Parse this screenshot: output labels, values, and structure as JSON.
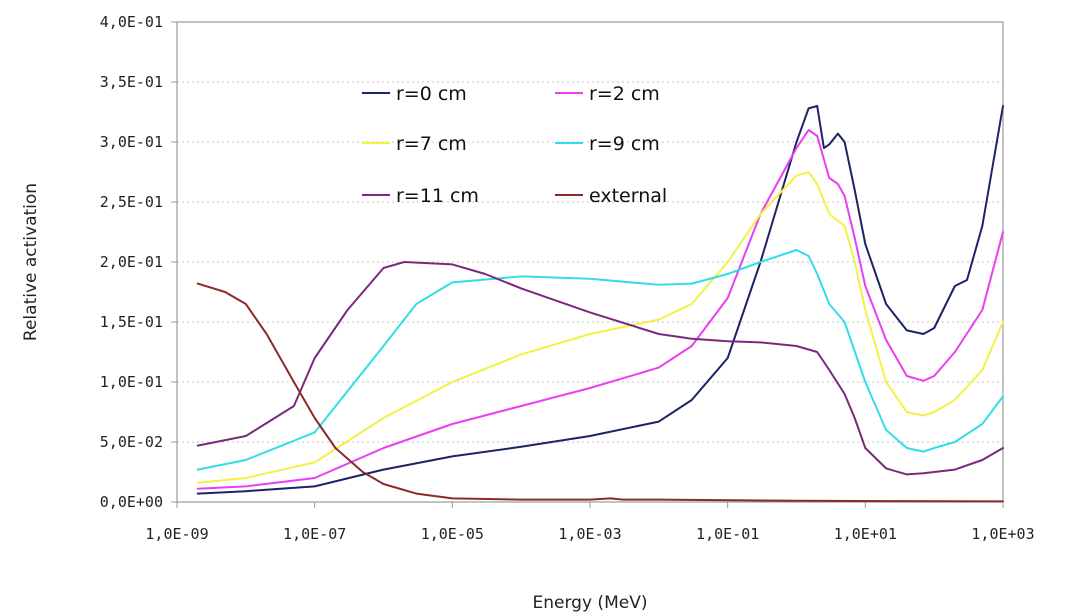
{
  "chart_data": {
    "type": "line",
    "title": "",
    "xlabel": "Energy (MeV)",
    "ylabel": "Relative activation",
    "x_scale": "log",
    "xlim": [
      1e-09,
      1000
    ],
    "ylim": [
      0,
      0.4
    ],
    "x_ticks": [
      1e-09,
      1e-07,
      1e-05,
      0.001,
      0.1,
      10,
      1000
    ],
    "x_tick_labels": [
      "1,0E-09",
      "1,0E-07",
      "1,0E-05",
      "1,0E-03",
      "1,0E-01",
      "1,0E+01",
      "1,0E+03"
    ],
    "y_ticks": [
      0,
      0.05,
      0.1,
      0.15,
      0.2,
      0.25,
      0.3,
      0.35,
      0.4
    ],
    "y_tick_labels": [
      "0,0E+00",
      "5,0E-02",
      "1,0E-01",
      "1,5E-01",
      "2,0E-01",
      "2,5E-01",
      "3,0E-01",
      "3,5E-01",
      "4,0E-01"
    ],
    "grid": "horizontal dotted",
    "legend_position": "top-left, inside plot, 3 rows x 2 columns",
    "series": [
      {
        "name": "r=0 cm",
        "color": "#1c2466",
        "points": [
          [
            2e-09,
            0.007
          ],
          [
            1e-08,
            0.009
          ],
          [
            1e-07,
            0.013
          ],
          [
            1e-06,
            0.027
          ],
          [
            1e-05,
            0.038
          ],
          [
            0.0001,
            0.046
          ],
          [
            0.001,
            0.055
          ],
          [
            0.01,
            0.067
          ],
          [
            0.03,
            0.085
          ],
          [
            0.1,
            0.12
          ],
          [
            0.3,
            0.2
          ],
          [
            1,
            0.3
          ],
          [
            1.5,
            0.328
          ],
          [
            2,
            0.33
          ],
          [
            2.5,
            0.295
          ],
          [
            3,
            0.298
          ],
          [
            4,
            0.307
          ],
          [
            5,
            0.3
          ],
          [
            7,
            0.26
          ],
          [
            10,
            0.215
          ],
          [
            20,
            0.165
          ],
          [
            40,
            0.143
          ],
          [
            70,
            0.14
          ],
          [
            100,
            0.145
          ],
          [
            200,
            0.18
          ],
          [
            300,
            0.185
          ],
          [
            500,
            0.23
          ],
          [
            1000,
            0.33
          ]
        ]
      },
      {
        "name": "r=2 cm",
        "color": "#ea3ef0",
        "points": [
          [
            2e-09,
            0.011
          ],
          [
            1e-08,
            0.013
          ],
          [
            1e-07,
            0.02
          ],
          [
            1e-06,
            0.045
          ],
          [
            1e-05,
            0.065
          ],
          [
            0.0001,
            0.08
          ],
          [
            0.001,
            0.095
          ],
          [
            0.01,
            0.112
          ],
          [
            0.03,
            0.13
          ],
          [
            0.1,
            0.17
          ],
          [
            0.3,
            0.24
          ],
          [
            1,
            0.295
          ],
          [
            1.5,
            0.31
          ],
          [
            2,
            0.305
          ],
          [
            3,
            0.27
          ],
          [
            4,
            0.265
          ],
          [
            5,
            0.255
          ],
          [
            7,
            0.22
          ],
          [
            10,
            0.18
          ],
          [
            20,
            0.135
          ],
          [
            40,
            0.105
          ],
          [
            70,
            0.101
          ],
          [
            100,
            0.105
          ],
          [
            200,
            0.125
          ],
          [
            500,
            0.16
          ],
          [
            1000,
            0.225
          ]
        ]
      },
      {
        "name": "r=7 cm",
        "color": "#f2f244",
        "points": [
          [
            2e-09,
            0.016
          ],
          [
            1e-08,
            0.02
          ],
          [
            1e-07,
            0.033
          ],
          [
            1e-06,
            0.07
          ],
          [
            1e-05,
            0.1
          ],
          [
            0.0001,
            0.123
          ],
          [
            0.001,
            0.14
          ],
          [
            0.01,
            0.152
          ],
          [
            0.03,
            0.165
          ],
          [
            0.1,
            0.2
          ],
          [
            0.3,
            0.24
          ],
          [
            1,
            0.272
          ],
          [
            1.5,
            0.275
          ],
          [
            2,
            0.265
          ],
          [
            3,
            0.24
          ],
          [
            5,
            0.23
          ],
          [
            7,
            0.2
          ],
          [
            10,
            0.16
          ],
          [
            20,
            0.1
          ],
          [
            40,
            0.075
          ],
          [
            70,
            0.072
          ],
          [
            100,
            0.075
          ],
          [
            200,
            0.085
          ],
          [
            500,
            0.11
          ],
          [
            1000,
            0.15
          ]
        ]
      },
      {
        "name": "r=9 cm",
        "color": "#33dde6",
        "points": [
          [
            2e-09,
            0.027
          ],
          [
            1e-08,
            0.035
          ],
          [
            1e-07,
            0.058
          ],
          [
            1e-06,
            0.13
          ],
          [
            3e-06,
            0.165
          ],
          [
            1e-05,
            0.183
          ],
          [
            0.0001,
            0.188
          ],
          [
            0.001,
            0.186
          ],
          [
            0.01,
            0.181
          ],
          [
            0.03,
            0.182
          ],
          [
            0.1,
            0.19
          ],
          [
            0.3,
            0.2
          ],
          [
            1,
            0.21
          ],
          [
            1.5,
            0.205
          ],
          [
            2,
            0.19
          ],
          [
            3,
            0.165
          ],
          [
            5,
            0.15
          ],
          [
            10,
            0.1
          ],
          [
            20,
            0.06
          ],
          [
            40,
            0.045
          ],
          [
            70,
            0.042
          ],
          [
            100,
            0.045
          ],
          [
            200,
            0.05
          ],
          [
            500,
            0.065
          ],
          [
            1000,
            0.088
          ]
        ]
      },
      {
        "name": "r=11 cm",
        "color": "#7a2a7c",
        "points": [
          [
            2e-09,
            0.047
          ],
          [
            1e-08,
            0.055
          ],
          [
            5e-08,
            0.08
          ],
          [
            1e-07,
            0.12
          ],
          [
            3e-07,
            0.16
          ],
          [
            1e-06,
            0.195
          ],
          [
            2e-06,
            0.2
          ],
          [
            1e-05,
            0.198
          ],
          [
            3e-05,
            0.19
          ],
          [
            0.0001,
            0.178
          ],
          [
            0.001,
            0.158
          ],
          [
            0.01,
            0.14
          ],
          [
            0.03,
            0.136
          ],
          [
            0.1,
            0.134
          ],
          [
            0.3,
            0.133
          ],
          [
            1,
            0.13
          ],
          [
            2,
            0.125
          ],
          [
            3,
            0.11
          ],
          [
            5,
            0.09
          ],
          [
            7,
            0.07
          ],
          [
            10,
            0.045
          ],
          [
            20,
            0.028
          ],
          [
            40,
            0.023
          ],
          [
            70,
            0.024
          ],
          [
            100,
            0.025
          ],
          [
            200,
            0.027
          ],
          [
            500,
            0.035
          ],
          [
            1000,
            0.045
          ]
        ]
      },
      {
        "name": "external",
        "color": "#8a2b2b",
        "points": [
          [
            2e-09,
            0.182
          ],
          [
            5e-09,
            0.175
          ],
          [
            1e-08,
            0.165
          ],
          [
            2e-08,
            0.14
          ],
          [
            5e-08,
            0.1
          ],
          [
            1e-07,
            0.07
          ],
          [
            2e-07,
            0.045
          ],
          [
            5e-07,
            0.025
          ],
          [
            1e-06,
            0.015
          ],
          [
            3e-06,
            0.007
          ],
          [
            1e-05,
            0.003
          ],
          [
            0.0001,
            0.002
          ],
          [
            0.001,
            0.002
          ],
          [
            0.002,
            0.003
          ],
          [
            0.003,
            0.002
          ],
          [
            0.01,
            0.002
          ],
          [
            1,
            0.001
          ],
          [
            1000,
            0.0005
          ]
        ]
      }
    ]
  }
}
